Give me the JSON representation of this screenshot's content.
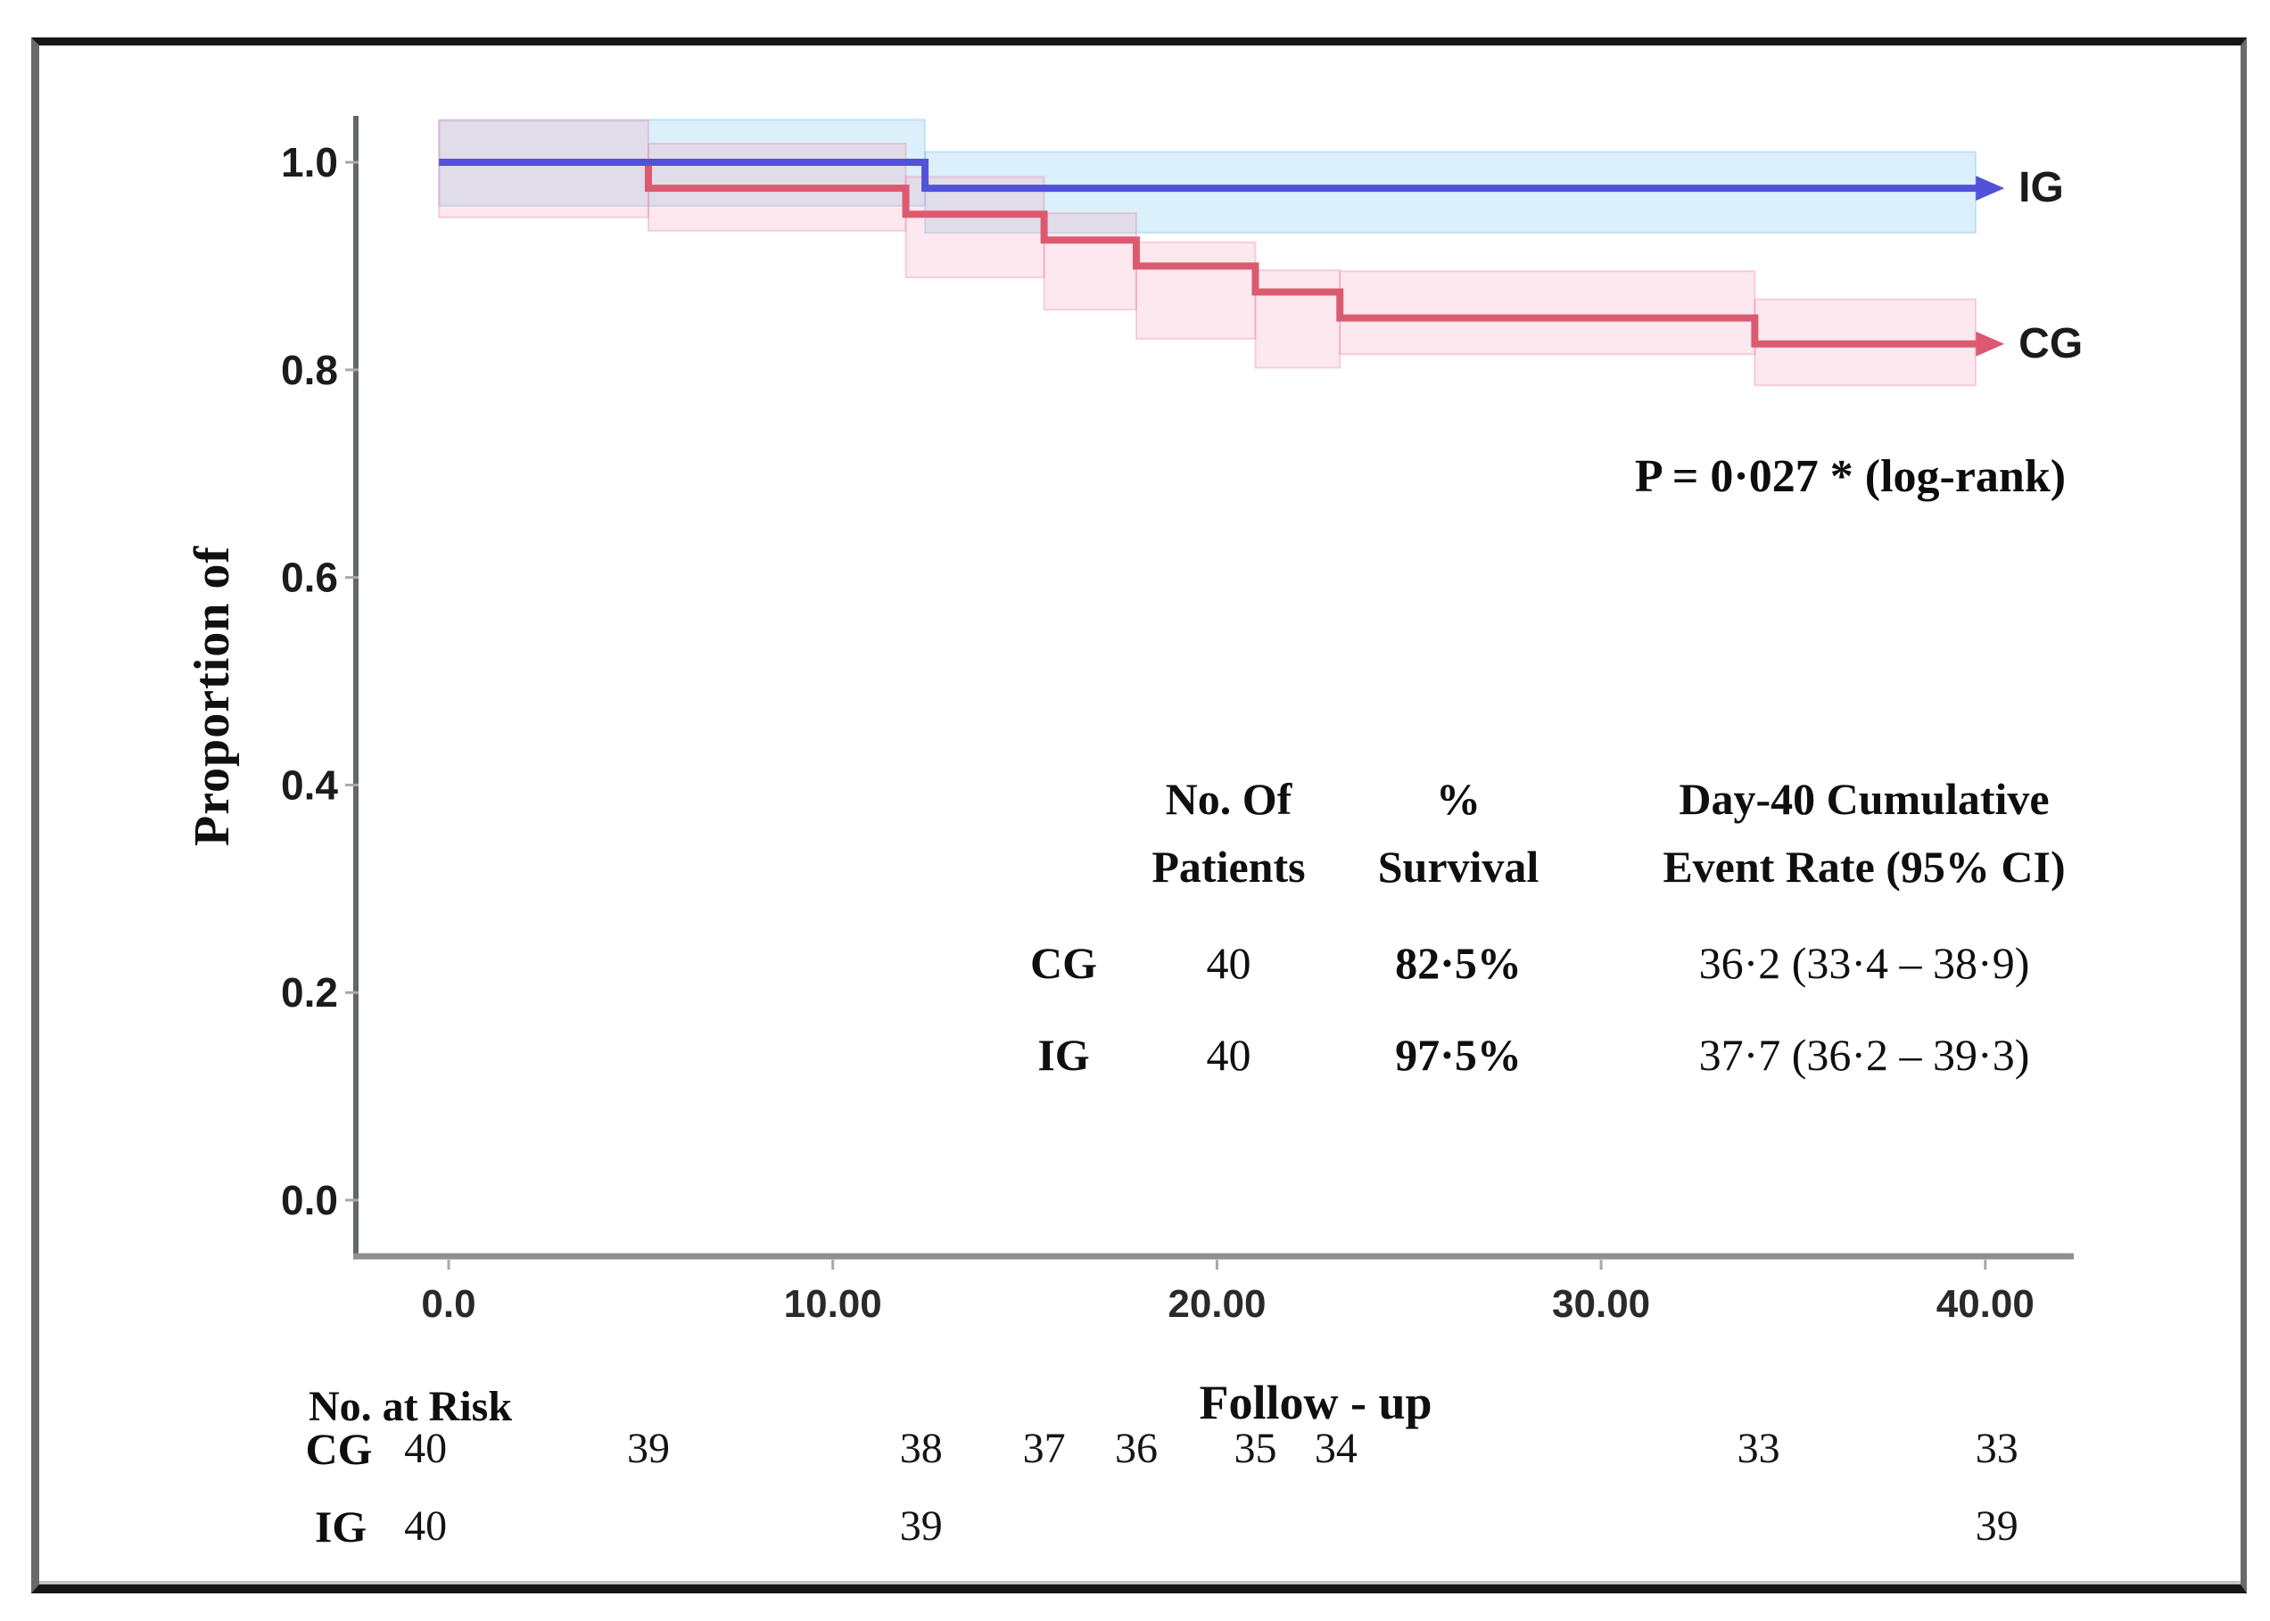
{
  "chart_data": {
    "type": "line",
    "subtype": "kaplan-meier-step-with-ci-bands",
    "title": "",
    "xlabel": "Follow - up",
    "ylabel": "Proportion of",
    "xlim": [
      0,
      40
    ],
    "ylim": [
      0.0,
      1.05
    ],
    "grid": false,
    "legend_position": "labels-at-curve-ends",
    "x_ticks": [
      {
        "value": 0,
        "label": "0.0"
      },
      {
        "value": 10,
        "label": "10.00"
      },
      {
        "value": 20,
        "label": "20.00"
      },
      {
        "value": 30,
        "label": "30.00"
      },
      {
        "value": 40,
        "label": "40.00"
      }
    ],
    "y_ticks": [
      {
        "value": 1.0,
        "label": "1.0"
      },
      {
        "value": 0.8,
        "label": "0.8"
      },
      {
        "value": 0.6,
        "label": "0.6"
      },
      {
        "value": 0.4,
        "label": "0.4"
      },
      {
        "value": 0.2,
        "label": "0.2"
      },
      {
        "value": 0.0,
        "label": "0.0"
      }
    ],
    "annotation": {
      "p_value": "P = 0·027 * (log-rank)"
    },
    "series": [
      {
        "name": "IG",
        "color": "#5152d8",
        "band_color": "rgba(125,200,236,0.28)",
        "band_edge": "rgba(110,180,225,0.30)",
        "start": {
          "t": -0.25,
          "v": 1.0
        },
        "steps": [
          {
            "t": 12.4,
            "v": 0.975
          }
        ],
        "end_t": 39.8,
        "day40_survival": 0.975,
        "ci_band": [
          {
            "t0": -0.25,
            "t1": 12.4,
            "lo": 0.958,
            "hi": 1.041
          },
          {
            "t0": 12.4,
            "t1": 39.75,
            "lo": 0.932,
            "hi": 1.01
          }
        ]
      },
      {
        "name": "CG",
        "color": "#dc5a70",
        "band_color": "rgba(243,158,183,0.24)",
        "band_edge": "rgba(232,125,155,0.32)",
        "start": {
          "t": -0.25,
          "v": 1.0
        },
        "steps": [
          {
            "t": 5.2,
            "v": 0.975
          },
          {
            "t": 11.9,
            "v": 0.95
          },
          {
            "t": 15.5,
            "v": 0.925
          },
          {
            "t": 17.9,
            "v": 0.9
          },
          {
            "t": 21.0,
            "v": 0.875
          },
          {
            "t": 23.2,
            "v": 0.85
          },
          {
            "t": 34.0,
            "v": 0.825
          }
        ],
        "end_t": 39.8,
        "day40_survival": 0.825,
        "ci_band": [
          {
            "t0": -0.25,
            "t1": 5.2,
            "lo": 0.947,
            "hi": 1.04
          },
          {
            "t0": 5.2,
            "t1": 11.9,
            "lo": 0.934,
            "hi": 1.018
          },
          {
            "t0": 11.9,
            "t1": 15.5,
            "lo": 0.889,
            "hi": 0.986
          },
          {
            "t0": 15.5,
            "t1": 17.9,
            "lo": 0.858,
            "hi": 0.951
          },
          {
            "t0": 17.9,
            "t1": 21.0,
            "lo": 0.83,
            "hi": 0.923
          },
          {
            "t0": 21.0,
            "t1": 23.2,
            "lo": 0.802,
            "hi": 0.896
          },
          {
            "t0": 23.2,
            "t1": 34.0,
            "lo": 0.815,
            "hi": 0.895
          },
          {
            "t0": 34.0,
            "t1": 39.75,
            "lo": 0.785,
            "hi": 0.868
          }
        ]
      }
    ],
    "number_at_risk": {
      "title": "No. at Risk",
      "rows": [
        {
          "label": "CG",
          "counts": [
            {
              "t": -0.6,
              "n": "40"
            },
            {
              "t": 5.2,
              "n": "39"
            },
            {
              "t": 12.3,
              "n": "38"
            },
            {
              "t": 15.5,
              "n": "37"
            },
            {
              "t": 17.9,
              "n": "36"
            },
            {
              "t": 21.0,
              "n": "35"
            },
            {
              "t": 23.1,
              "n": "34"
            },
            {
              "t": 34.1,
              "n": "33"
            },
            {
              "t": 40.3,
              "n": "33"
            }
          ]
        },
        {
          "label": "IG",
          "counts": [
            {
              "t": -0.6,
              "n": "40"
            },
            {
              "t": 12.3,
              "n": "39"
            },
            {
              "t": 40.3,
              "n": "39"
            }
          ]
        }
      ]
    },
    "summary_table": {
      "columns": [
        {
          "line1": "No. Of",
          "line2": "Patients"
        },
        {
          "line1": "%",
          "line2": "Survival"
        },
        {
          "line1": "Day-40 Cumulative",
          "line2": "Event Rate (95% CI)"
        }
      ],
      "rows": [
        {
          "group": "CG",
          "n_patients": "40",
          "pct_survival": "82·5%",
          "event_rate": "36·2 (33·4 – 38·9)"
        },
        {
          "group": "IG",
          "n_patients": "40",
          "pct_survival": "97·5%",
          "event_rate": "37·7 (36·2 – 39·3)"
        }
      ]
    }
  }
}
